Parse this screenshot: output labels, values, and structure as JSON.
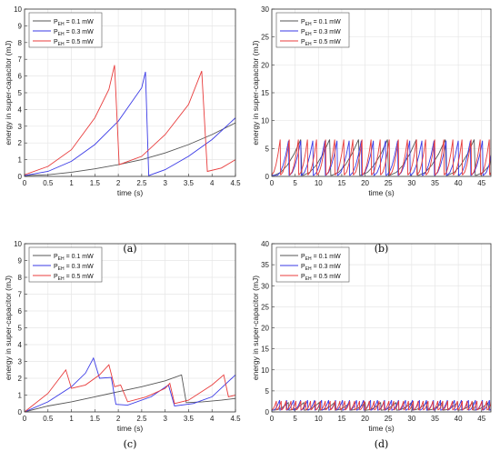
{
  "chart_data": [
    {
      "type": "line",
      "caption": "(a)",
      "xlabel": "time (s)",
      "ylabel": "energy in super-capacitor (mJ)",
      "xlim": [
        0,
        4.5
      ],
      "ylim": [
        0,
        10
      ],
      "xticks": [
        "0",
        "0.5",
        "1",
        "1.5",
        "2",
        "2.5",
        "3",
        "3.5",
        "4",
        "4.5"
      ],
      "yticks": [
        "0",
        "1",
        "2",
        "3",
        "4",
        "5",
        "6",
        "7",
        "8",
        "9",
        "10"
      ],
      "grid": true,
      "legend_position": "top-left",
      "series": [
        {
          "name": "P_EH = 0.1 mW",
          "legend_main": "P",
          "legend_sub": "EH",
          "legend_rest": " = 0.1 mW",
          "color": "#555555",
          "points": [
            [
              0,
              0.05
            ],
            [
              0.5,
              0.1
            ],
            [
              1,
              0.25
            ],
            [
              1.5,
              0.45
            ],
            [
              2,
              0.7
            ],
            [
              2.5,
              1.0
            ],
            [
              3,
              1.4
            ],
            [
              3.5,
              1.9
            ],
            [
              4,
              2.5
            ],
            [
              4.5,
              3.2
            ]
          ]
        },
        {
          "name": "P_EH = 0.3 mW",
          "legend_main": "P",
          "legend_sub": "EH",
          "legend_rest": " = 0.3 mW",
          "color": "#3a3ae6",
          "points": [
            [
              0,
              0.05
            ],
            [
              0.5,
              0.3
            ],
            [
              1,
              0.9
            ],
            [
              1.5,
              1.9
            ],
            [
              2,
              3.3
            ],
            [
              2.5,
              5.3
            ],
            [
              2.58,
              6.25
            ],
            [
              2.65,
              0.05
            ],
            [
              3,
              0.4
            ],
            [
              3.5,
              1.2
            ],
            [
              4,
              2.2
            ],
            [
              4.5,
              3.5
            ]
          ]
        },
        {
          "name": "P_EH = 0.5 mW",
          "legend_main": "P",
          "legend_sub": "EH",
          "legend_rest": " = 0.5 mW",
          "color": "#e83c3c",
          "points": [
            [
              0,
              0.1
            ],
            [
              0.5,
              0.6
            ],
            [
              1,
              1.6
            ],
            [
              1.5,
              3.5
            ],
            [
              1.8,
              5.2
            ],
            [
              1.92,
              6.65
            ],
            [
              2.02,
              0.7
            ],
            [
              2.5,
              1.2
            ],
            [
              3,
              2.5
            ],
            [
              3.5,
              4.3
            ],
            [
              3.78,
              6.3
            ],
            [
              3.9,
              0.3
            ],
            [
              4.2,
              0.5
            ],
            [
              4.5,
              1.0
            ]
          ]
        }
      ]
    },
    {
      "type": "line",
      "caption": "(b)",
      "xlabel": "time (s)",
      "ylabel": "energy in super-capacitor (mJ)",
      "xlim": [
        0,
        47
      ],
      "ylim": [
        0,
        30
      ],
      "xticks": [
        "0",
        "5",
        "10",
        "15",
        "20",
        "25",
        "30",
        "35",
        "40",
        "45"
      ],
      "yticks": [
        "0",
        "5",
        "10",
        "15",
        "20",
        "25",
        "30"
      ],
      "grid": true,
      "legend_position": "top-left",
      "series": [
        {
          "name": "P_EH = 0.1 mW",
          "legend_main": "P",
          "legend_sub": "EH",
          "legend_rest": " = 0.1 mW",
          "color": "#555555",
          "sawtooth": {
            "start": 0.5,
            "period": 6.2,
            "peak": 6.6,
            "low": 0.2
          }
        },
        {
          "name": "P_EH = 0.3 mW",
          "legend_main": "P",
          "legend_sub": "EH",
          "legend_rest": " = 0.3 mW",
          "color": "#3a3ae6",
          "sawtooth": {
            "start": 1.2,
            "period": 2.6,
            "peak": 6.4,
            "low": 0.2
          }
        },
        {
          "name": "P_EH = 0.5 mW",
          "legend_main": "P",
          "legend_sub": "EH",
          "legend_rest": " = 0.5 mW",
          "color": "#e83c3c",
          "sawtooth": {
            "start": 0.0,
            "period": 1.95,
            "peak": 6.6,
            "low": 0.3
          }
        }
      ]
    },
    {
      "type": "line",
      "caption": "(c)",
      "xlabel": "time (s)",
      "ylabel": "energy in super-capacitor (mJ)",
      "xlim": [
        0,
        4.5
      ],
      "ylim": [
        0,
        10
      ],
      "xticks": [
        "0",
        "0.5",
        "1",
        "1.5",
        "2",
        "2.5",
        "3",
        "3.5",
        "4",
        "4.5"
      ],
      "yticks": [
        "0",
        "1",
        "2",
        "3",
        "4",
        "5",
        "6",
        "7",
        "8",
        "9",
        "10"
      ],
      "grid": true,
      "legend_position": "top-left",
      "series": [
        {
          "name": "P_EH = 0.1 mW",
          "legend_main": "P",
          "legend_sub": "EH",
          "legend_rest": " = 0.1 mW",
          "color": "#555555",
          "points": [
            [
              0,
              0.0
            ],
            [
              0.5,
              0.35
            ],
            [
              1,
              0.6
            ],
            [
              1.5,
              0.9
            ],
            [
              2,
              1.2
            ],
            [
              2.5,
              1.5
            ],
            [
              3,
              1.85
            ],
            [
              3.35,
              2.2
            ],
            [
              3.45,
              0.55
            ],
            [
              3.8,
              0.6
            ],
            [
              4.2,
              0.7
            ],
            [
              4.5,
              0.8
            ]
          ]
        },
        {
          "name": "P_EH = 0.3 mW",
          "legend_main": "P",
          "legend_sub": "EH",
          "legend_rest": " = 0.3 mW",
          "color": "#3a3ae6",
          "points": [
            [
              0,
              0.0
            ],
            [
              0.5,
              0.6
            ],
            [
              1,
              1.5
            ],
            [
              1.3,
              2.3
            ],
            [
              1.47,
              3.2
            ],
            [
              1.6,
              2.0
            ],
            [
              1.85,
              2.05
            ],
            [
              1.95,
              0.45
            ],
            [
              2.2,
              0.4
            ],
            [
              2.7,
              0.9
            ],
            [
              3.07,
              1.6
            ],
            [
              3.2,
              0.35
            ],
            [
              3.6,
              0.5
            ],
            [
              4,
              0.9
            ],
            [
              4.5,
              2.2
            ]
          ]
        },
        {
          "name": "P_EH = 0.5 mW",
          "legend_main": "P",
          "legend_sub": "EH",
          "legend_rest": " = 0.5 mW",
          "color": "#e83c3c",
          "points": [
            [
              0,
              0.0
            ],
            [
              0.5,
              1.1
            ],
            [
              0.88,
              2.5
            ],
            [
              1.0,
              1.4
            ],
            [
              1.3,
              1.6
            ],
            [
              1.6,
              2.2
            ],
            [
              1.8,
              2.8
            ],
            [
              1.92,
              1.5
            ],
            [
              2.05,
              1.6
            ],
            [
              2.2,
              0.6
            ],
            [
              2.6,
              0.9
            ],
            [
              3.0,
              1.4
            ],
            [
              3.1,
              1.7
            ],
            [
              3.2,
              0.5
            ],
            [
              3.5,
              0.7
            ],
            [
              4.0,
              1.6
            ],
            [
              4.25,
              2.2
            ],
            [
              4.35,
              0.9
            ],
            [
              4.5,
              1.0
            ]
          ]
        }
      ]
    },
    {
      "type": "line",
      "caption": "(d)",
      "xlabel": "time (s)",
      "ylabel": "energy in super-capacitor (mJ)",
      "xlim": [
        0,
        47
      ],
      "ylim": [
        0,
        40
      ],
      "xticks": [
        "0",
        "5",
        "10",
        "15",
        "20",
        "25",
        "30",
        "35",
        "40",
        "45"
      ],
      "yticks": [
        "0",
        "5",
        "10",
        "15",
        "20",
        "25",
        "30",
        "35",
        "40"
      ],
      "grid": true,
      "legend_position": "top-left",
      "series": [
        {
          "name": "P_EH = 0.1 mW",
          "legend_main": "P",
          "legend_sub": "EH",
          "legend_rest": " = 0.1 mW",
          "color": "#555555",
          "sawtooth": {
            "start": 0.5,
            "period": 3.3,
            "peak": 2.2,
            "low": 0.4
          }
        },
        {
          "name": "P_EH = 0.3 mW",
          "legend_main": "P",
          "legend_sub": "EH",
          "legend_rest": " = 0.3 mW",
          "color": "#3a3ae6",
          "sawtooth": {
            "start": 0.3,
            "period": 1.5,
            "peak": 2.8,
            "low": 0.4
          }
        },
        {
          "name": "P_EH = 0.5 mW",
          "legend_main": "P",
          "legend_sub": "EH",
          "legend_rest": " = 0.5 mW",
          "color": "#e83c3c",
          "sawtooth": {
            "start": 0.0,
            "period": 1.05,
            "peak": 2.6,
            "low": 0.5
          }
        }
      ]
    }
  ]
}
